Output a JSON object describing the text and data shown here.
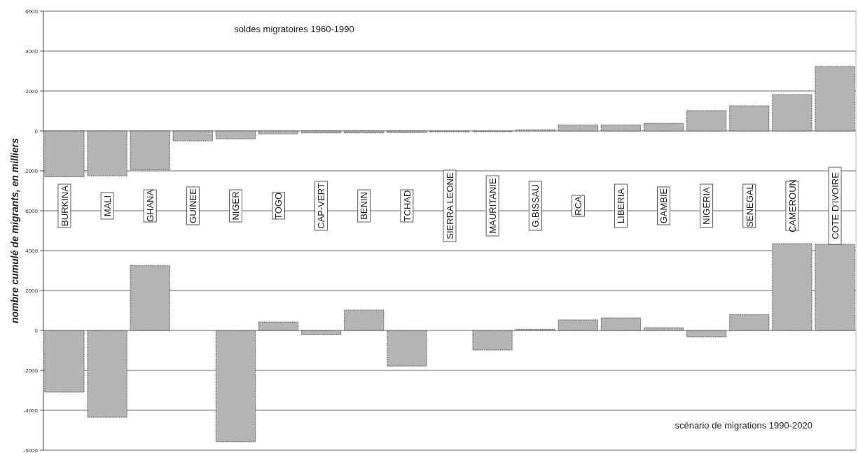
{
  "chart_data": [
    {
      "type": "bar",
      "title": "soldes migratoires 1960-1990",
      "ylabel": "nombre cumulé de migrants, en milliers",
      "categories": [
        "BURKINA",
        "MALI",
        "GHANA",
        "GUINEE",
        "NIGER",
        "TOGO",
        "CAP-VERT",
        "BENIN",
        "TCHAD",
        "SIERRA LEONE",
        "MAURITANIE",
        "G.BISSAU",
        "RCA",
        "LIBERIA",
        "GAMBIE",
        "NIGERIA",
        "SENEGAL",
        "CAMEROUN",
        "COTE D'IVOIRE"
      ],
      "values": [
        -2300,
        -2250,
        -1950,
        -500,
        -400,
        -150,
        -100,
        -100,
        -80,
        -50,
        -40,
        50,
        300,
        300,
        380,
        1020,
        1260,
        1820,
        3230
      ],
      "color": "#b4b4b4",
      "ylim": [
        -4000,
        6000
      ],
      "yticks": [
        6000,
        4000,
        2000,
        0,
        -2000
      ],
      "grid": "y"
    },
    {
      "type": "bar",
      "title": "scénario de migrations 1990-2020",
      "categories": [
        null,
        null,
        null,
        null,
        null,
        null,
        null,
        null,
        null,
        null,
        null,
        null,
        null,
        null,
        null,
        null,
        null,
        null,
        null
      ],
      "values": [
        -3090,
        -4350,
        3260,
        0,
        -5580,
        420,
        -200,
        1020,
        -1790,
        0,
        -980,
        60,
        530,
        630,
        140,
        -320,
        800,
        4350,
        4320
      ],
      "color": "#b4b4b4",
      "ylim": [
        -6000,
        6000
      ],
      "yticks": [
        6000,
        4000,
        2000,
        0,
        -2000,
        -4000,
        -6000
      ],
      "grid": "y",
      "tick_labels": "y"
    }
  ]
}
